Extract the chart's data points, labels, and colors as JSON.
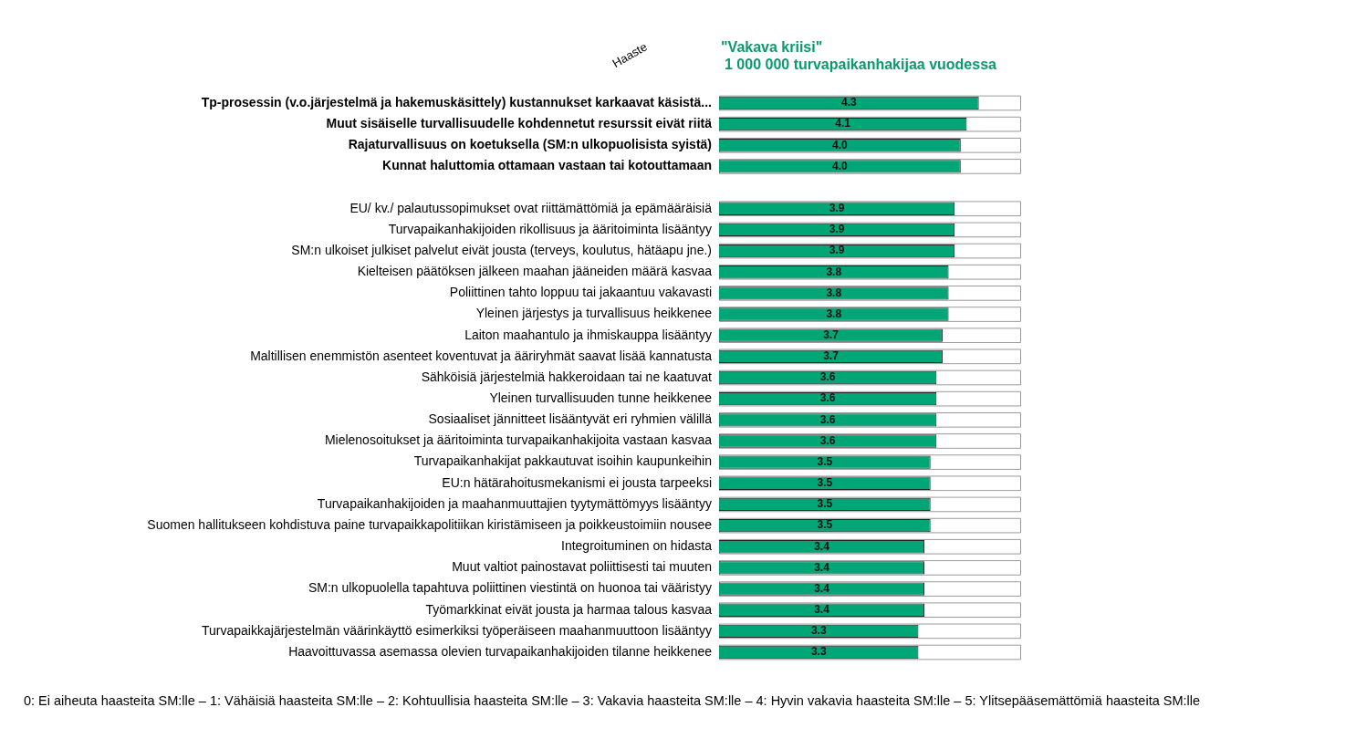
{
  "chart_data": {
    "type": "bar",
    "orientation": "horizontal",
    "stacked": true,
    "title": "\"Vakava kriisi\"",
    "subtitle": "1 000 000 turvapaikanhakijaa vuodessa",
    "ylabel": "Haaste",
    "categories": [
      "Tp-prosessin (v.o.järjestelmä ja hakemuskäsittely) kustannukset karkaavat käsistä...",
      "Muut sisäiselle turvallisuudelle kohdennetut resurssit eivät riitä",
      "Rajaturvallisuus on koetuksella (SM:n ulkopuolisista syistä)",
      "Kunnat haluttomia ottamaan vastaan tai kotouttamaan",
      null,
      "EU/ kv./ palautussopimukset ovat riittämättömiä ja epämääräisiä",
      "Turvapaikanhakijoiden rikollisuus ja ääritoiminta lisääntyy",
      "SM:n ulkoiset julkiset palvelut eivät jousta (terveys, koulutus, hätäapu jne.)",
      "Kielteisen päätöksen jälkeen maahan jääneiden määrä kasvaa",
      "Poliittinen tahto loppuu tai jakaantuu vakavasti",
      "Yleinen järjestys ja turvallisuus heikkenee",
      "Laiton maahantulo ja ihmiskauppa lisääntyy",
      "Maltillisen enemmistön asenteet koventuvat ja ääriryhmät saavat lisää kannatusta",
      "Sähköisiä järjestelmiä hakkeroidaan tai ne kaatuvat",
      "Yleinen turvallisuuden tunne heikkenee",
      "Sosiaaliset jännitteet lisääntyvät eri ryhmien välillä",
      "Mielenosoitukset ja ääritoiminta turvapaikanhakijoita vastaan kasvaa",
      "Turvapaikanhakijat pakkautuvat isoihin kaupunkeihin",
      "EU:n hätärahoitusmekanismi ei jousta tarpeeksi",
      "Turvapaikanhakijoiden ja maahanmuuttajien tyytymättömyys lisääntyy",
      "Suomen hallitukseen kohdistuva paine turvapaikkapolitiikan kiristämiseen ja poikkeustoimiin nousee",
      "Integroituminen on hidasta",
      "Muut valtiot painostavat poliittisesti tai muuten",
      "SM:n ulkopuolella tapahtuva poliittinen viestintä on huonoa tai vääristyy",
      "Työmarkkinat eivät jousta ja harmaa talous kasvaa",
      "Turvapaikkajärjestelmän väärinkäyttö esimerkiksi työperäiseen maahanmuuttoon lisääntyy",
      "Haavoittuvassa asemassa olevien turvapaikanhakijoiden tilanne heikkenee"
    ],
    "series": [
      {
        "color": "#00a676",
        "values": [
          4.3,
          4.1,
          4.0,
          4.0,
          null,
          null,
          null,
          null,
          null,
          null,
          null,
          null,
          null,
          null,
          null,
          null,
          null,
          null,
          null,
          null,
          null,
          null,
          null,
          null,
          null,
          null,
          null
        ],
        "value_labels": [
          "4.3",
          "4.1",
          "4.0",
          "4.0",
          null,
          null,
          null,
          null,
          null,
          null,
          null,
          null,
          null,
          null,
          null,
          null,
          null,
          null,
          null,
          null,
          null,
          null,
          null,
          null,
          null,
          null,
          null
        ]
      },
      {
        "color": "#00a676",
        "values": [
          null,
          null,
          null,
          null,
          null,
          3.9,
          3.9,
          3.9,
          3.8,
          3.8,
          3.8,
          3.7,
          3.7,
          3.6,
          3.6,
          3.6,
          3.6,
          3.5,
          3.5,
          3.5,
          3.5,
          3.4,
          3.4,
          3.4,
          3.4,
          3.3,
          3.3
        ],
        "value_labels": [
          null,
          null,
          null,
          null,
          null,
          "3.9",
          "3.9",
          "3.9",
          "3.8",
          "3.8",
          "3.8",
          "3.7",
          "3.7",
          "3.6",
          "3.6",
          "3.6",
          "3.6",
          "3.5",
          "3.5",
          "3.5",
          "3.5",
          "3.4",
          "3.4",
          "3.4",
          "3.4",
          "3.3",
          "3.3"
        ]
      }
    ],
    "xlim": [
      0,
      5
    ],
    "tick_labels": "y",
    "grid": false,
    "legend": false,
    "annotations": [
      "0: Ei aiheuta haasteita SM:lle – 1: Vähäisiä haasteita SM:lle – 2: Kohtuullisia haasteita SM:lle – 3: Vakavia haasteita SM:lle – 4: Hyvin vakavia haasteita SM:lle – 5: Ylitsepääsemättömiä haasteita SM:lle"
    ]
  }
}
